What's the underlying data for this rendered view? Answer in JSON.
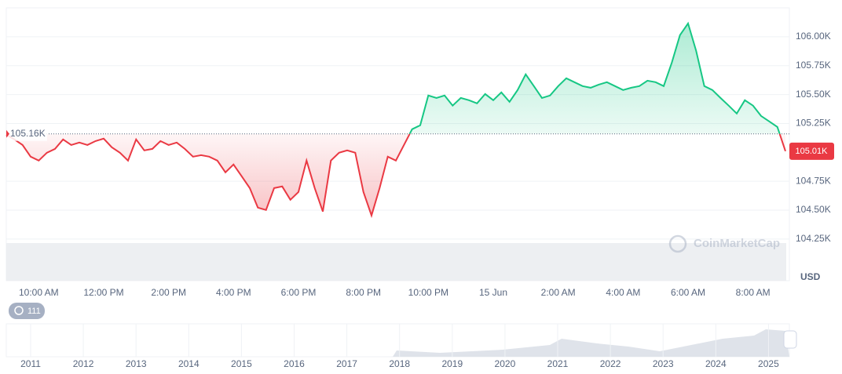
{
  "chart_data": {
    "type": "line",
    "y_label": "USD",
    "watermark": "CoinMarketCap",
    "history_badge": "111",
    "categories": [
      null,
      null,
      null,
      null,
      "10:00 AM",
      null,
      null,
      null,
      null,
      null,
      null,
      null,
      "12:00 PM",
      null,
      null,
      null,
      null,
      null,
      null,
      null,
      "2:00 PM",
      null,
      null,
      null,
      null,
      null,
      null,
      null,
      "4:00 PM",
      null,
      null,
      null,
      null,
      null,
      null,
      null,
      "6:00 PM",
      null,
      null,
      null,
      null,
      null,
      null,
      null,
      "8:00 PM",
      null,
      null,
      null,
      null,
      null,
      null,
      null,
      "10:00 PM",
      null,
      null,
      null,
      null,
      null,
      null,
      null,
      "15 Jun",
      null,
      null,
      null,
      null,
      null,
      null,
      null,
      "2:00 AM",
      null,
      null,
      null,
      null,
      null,
      null,
      null,
      "4:00 AM",
      null,
      null,
      null,
      null,
      null,
      null,
      null,
      "6:00 AM",
      null,
      null,
      null,
      null,
      null,
      null,
      null,
      "8:00 AM",
      null,
      null,
      null,
      null
    ],
    "values": [
      105152,
      105112,
      105064,
      104963,
      104929,
      104997,
      105030,
      105112,
      105064,
      105085,
      105064,
      105098,
      105119,
      105044,
      104997,
      104929,
      105112,
      105017,
      105030,
      105098,
      105064,
      105085,
      105030,
      104963,
      104976,
      104963,
      104929,
      104827,
      104895,
      104793,
      104691,
      104522,
      104502,
      104691,
      104705,
      104590,
      104658,
      104929,
      104691,
      104488,
      104929,
      104997,
      105017,
      104997,
      104658,
      104454,
      104691,
      104963,
      104929,
      105064,
      105200,
      105234,
      105492,
      105471,
      105492,
      105404,
      105471,
      105451,
      105424,
      105505,
      105451,
      105519,
      105437,
      105539,
      105675,
      105573,
      105471,
      105492,
      105573,
      105641,
      105607,
      105573,
      105559,
      105586,
      105607,
      105573,
      105539,
      105559,
      105573,
      105620,
      105607,
      105573,
      105776,
      106014,
      106115,
      105878,
      105573,
      105539,
      105471,
      105404,
      105336,
      105451,
      105404,
      105315,
      105268,
      105220,
      105010
    ],
    "last_value_label": "105.01K",
    "reference_line": {
      "value": 105160,
      "label": "105.16K"
    },
    "up_color": "#16c784",
    "down_color": "#ea3943",
    "ylim": [
      103890,
      106250
    ],
    "yticks": [
      {
        "value": 104250,
        "label": "104.25K"
      },
      {
        "value": 104500,
        "label": "104.50K"
      },
      {
        "value": 104750,
        "label": "104.75K"
      },
      {
        "value": 105250,
        "label": "105.25K"
      },
      {
        "value": 105500,
        "label": "105.50K"
      },
      {
        "value": 105750,
        "label": "105.75K"
      },
      {
        "value": 106000,
        "label": "106.00K"
      }
    ],
    "grid": true,
    "overview_years": [
      "2011",
      "2012",
      "2013",
      "2014",
      "2015",
      "2016",
      "2017",
      "2018",
      "2019",
      "2020",
      "2021",
      "2022",
      "2023",
      "2024",
      "2025"
    ]
  }
}
